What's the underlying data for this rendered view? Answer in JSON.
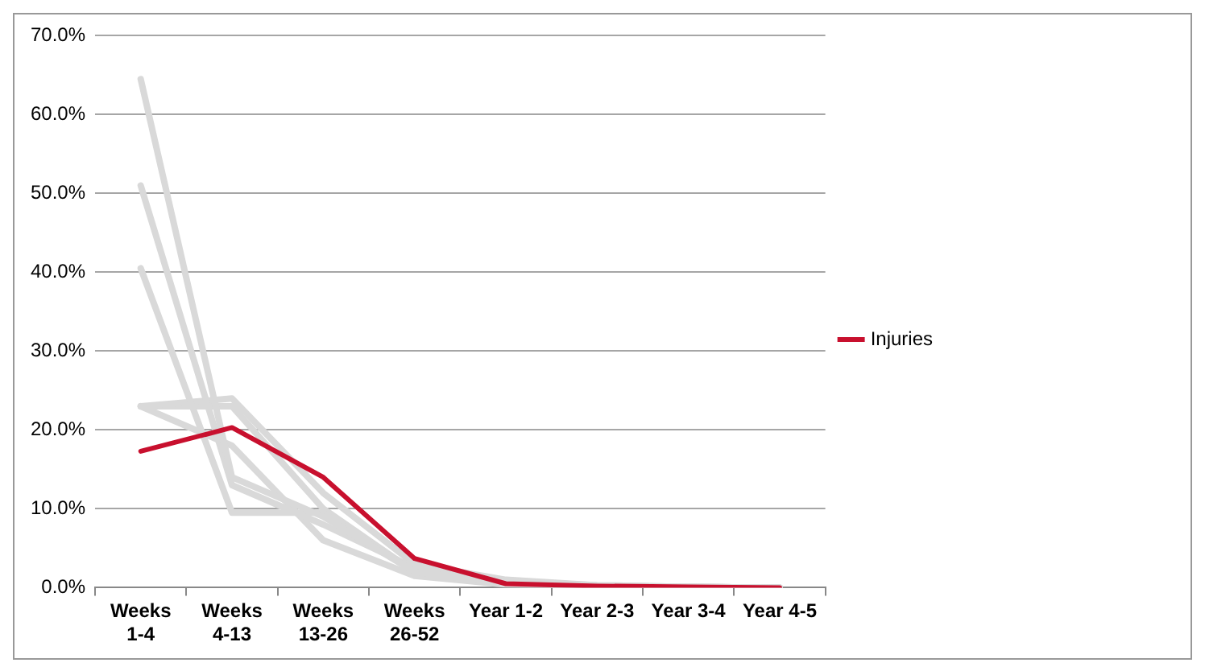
{
  "chart_data": {
    "type": "line",
    "categories": [
      "Weeks 1-4",
      "Weeks 4-13",
      "Weeks 13-26",
      "Weeks 26-52",
      "Year 1-2",
      "Year 2-3",
      "Year 3-4",
      "Year 4-5"
    ],
    "series": [
      {
        "color": "#d9d9d9",
        "values": [
          64.5,
          14,
          9,
          2,
          0.5,
          0.2,
          0.1,
          0
        ]
      },
      {
        "color": "#d9d9d9",
        "values": [
          51,
          13,
          8,
          2.5,
          0.8,
          0.3,
          0.1,
          0
        ]
      },
      {
        "color": "#d9d9d9",
        "values": [
          40.5,
          9.5,
          9.5,
          2,
          0.5,
          0.2,
          0.1,
          0
        ]
      },
      {
        "color": "#d9d9d9",
        "values": [
          23,
          24,
          12,
          3,
          1,
          0.3,
          0.1,
          0
        ]
      },
      {
        "color": "#d9d9d9",
        "values": [
          23,
          23,
          10,
          2,
          0.6,
          0.2,
          0.1,
          0
        ]
      },
      {
        "color": "#d9d9d9",
        "values": [
          23,
          18,
          6,
          1.5,
          0.4,
          0.2,
          0.1,
          0
        ]
      },
      {
        "name": "Injuries",
        "color": "#c8102e",
        "values": [
          17.3,
          20.3,
          14,
          3.7,
          0.5,
          0.2,
          0.1,
          0
        ]
      }
    ],
    "ylim": [
      0,
      70
    ],
    "yticks": [
      {
        "value": 0,
        "label": "0.0%"
      },
      {
        "value": 10,
        "label": "10.0%"
      },
      {
        "value": 20,
        "label": "20.0%"
      },
      {
        "value": 30,
        "label": "30.0%"
      },
      {
        "value": 40,
        "label": "40.0%"
      },
      {
        "value": 50,
        "label": "50.0%"
      },
      {
        "value": 60,
        "label": "60.0%"
      },
      {
        "value": 70,
        "label": "70.0%"
      }
    ],
    "grid": "y",
    "legend": "right",
    "marker": "none",
    "line_style": "solid"
  }
}
